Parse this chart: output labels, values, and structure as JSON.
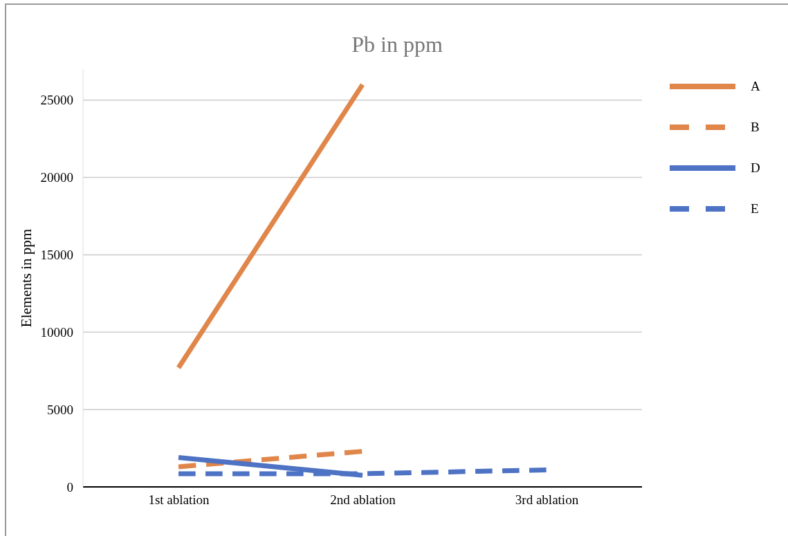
{
  "chart_data": {
    "type": "line",
    "title": "Pb in ppm",
    "ylabel": "Elements in ppm",
    "categories": [
      "1st ablation",
      "2nd ablation",
      "3rd ablation"
    ],
    "series": [
      {
        "name": "A",
        "color": "#e0864a",
        "line_style": "solid",
        "values": [
          7700,
          26000,
          null
        ]
      },
      {
        "name": "B",
        "color": "#e0864a",
        "line_style": "dashed",
        "values": [
          1300,
          2300,
          null
        ]
      },
      {
        "name": "D",
        "color": "#4e72c4",
        "line_style": "solid",
        "values": [
          1900,
          750,
          null
        ]
      },
      {
        "name": "E",
        "color": "#4e72c4",
        "line_style": "dashed",
        "values": [
          850,
          850,
          1100
        ]
      }
    ],
    "ylim": [
      0,
      27000
    ],
    "yticks": [
      0,
      5000,
      10000,
      15000,
      20000,
      25000
    ],
    "grid": "y",
    "legend": "right"
  }
}
